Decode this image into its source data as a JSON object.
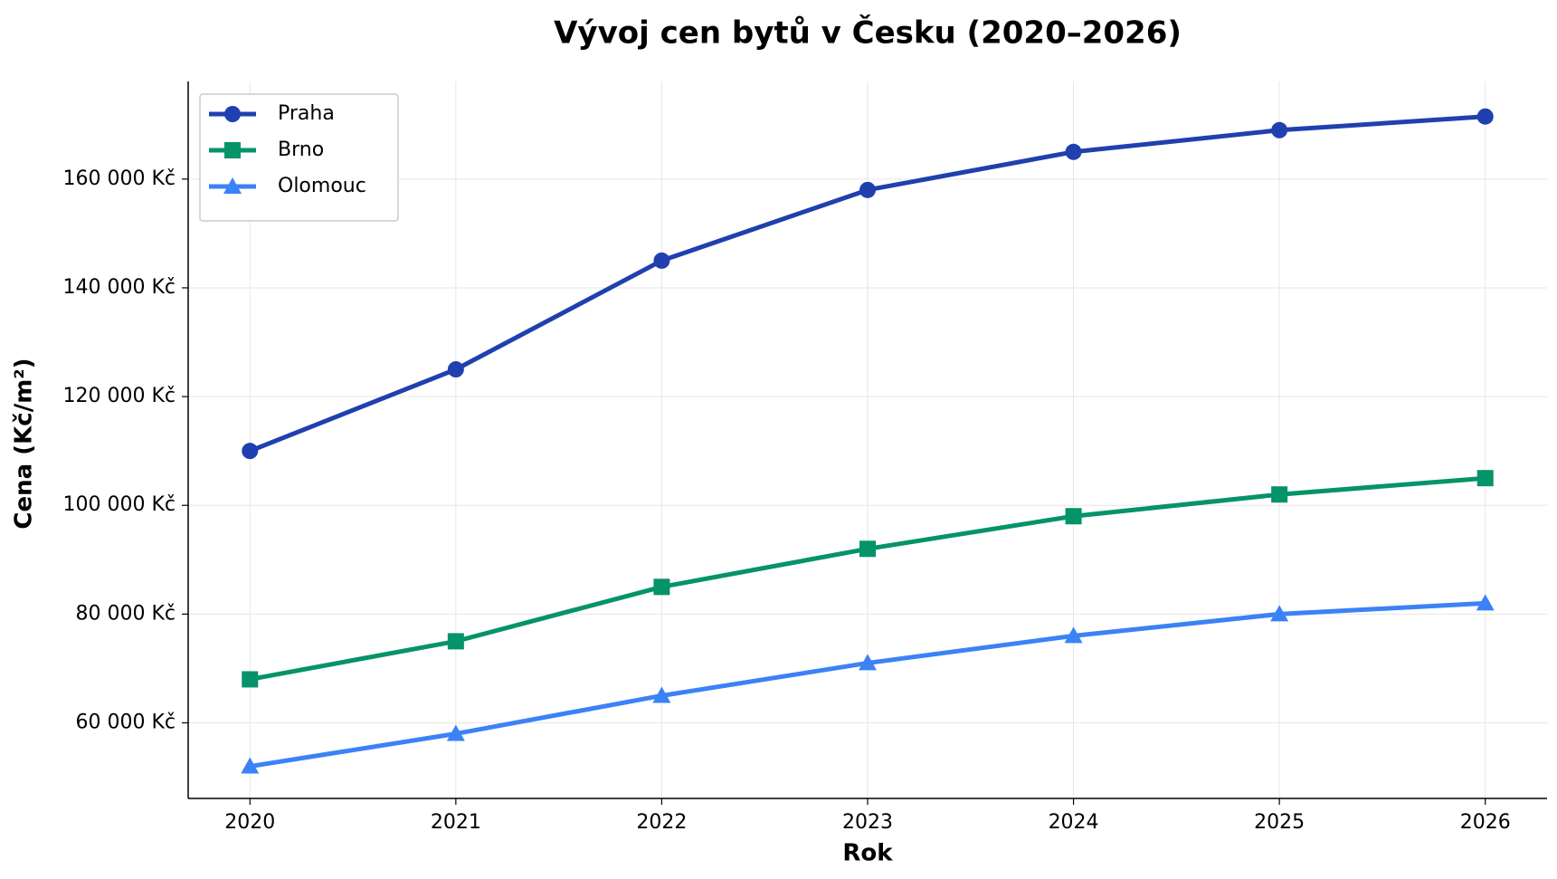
{
  "chart_data": {
    "type": "line",
    "title": "Vývoj cen bytů v Česku (2020–2026)",
    "xlabel": "Rok",
    "ylabel": "Cena (Kč/m²)",
    "x": [
      2020,
      2021,
      2022,
      2023,
      2024,
      2025,
      2026
    ],
    "series": [
      {
        "name": "Praha",
        "color": "#1f40ae",
        "marker": "circle",
        "values": [
          110000,
          125000,
          145000,
          158000,
          165000,
          169000,
          171500
        ]
      },
      {
        "name": "Brno",
        "color": "#05936a",
        "marker": "square",
        "values": [
          68000,
          75000,
          85000,
          92000,
          98000,
          102000,
          105000
        ]
      },
      {
        "name": "Olomouc",
        "color": "#3b82f6",
        "marker": "triangle",
        "values": [
          52000,
          58000,
          65000,
          71000,
          76000,
          80000,
          82000
        ]
      }
    ],
    "xlim": [
      2019.7,
      2026.3
    ],
    "xticks": [
      2020,
      2021,
      2022,
      2023,
      2024,
      2025,
      2026
    ],
    "ylim": [
      46100,
      177950
    ],
    "yticks": [
      {
        "value": 60000,
        "label": "60 000 Kč"
      },
      {
        "value": 80000,
        "label": "80 000 Kč"
      },
      {
        "value": 100000,
        "label": "100 000 Kč"
      },
      {
        "value": 120000,
        "label": "120 000 Kč"
      },
      {
        "value": 140000,
        "label": "140 000 Kč"
      },
      {
        "value": 160000,
        "label": "160 000 Kč"
      }
    ],
    "grid": true,
    "legend": "upper left"
  }
}
